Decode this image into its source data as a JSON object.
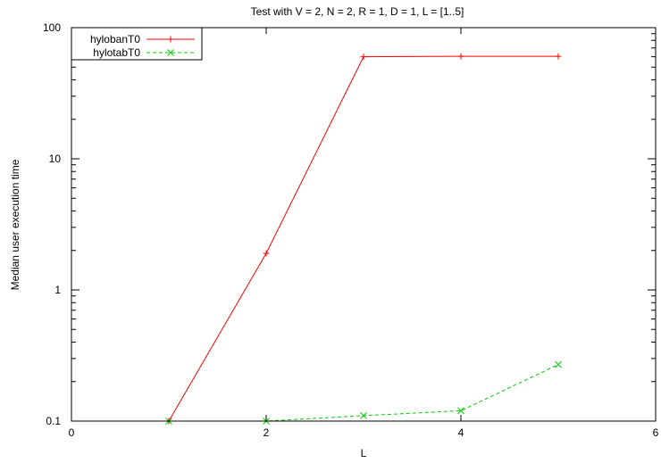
{
  "chart_data": {
    "type": "line",
    "title": "Test with V = 2, N = 2, R = 1, D = 1, L = [1..5]",
    "xlabel": "L",
    "ylabel": "Median user execution time",
    "xlim": [
      0,
      6
    ],
    "ylim": [
      0.1,
      100
    ],
    "yscale": "log",
    "xticks": [
      0,
      2,
      4,
      6
    ],
    "yticks": [
      0.1,
      1,
      10,
      100
    ],
    "xtick_labels": [
      "0",
      "2",
      "4",
      "6"
    ],
    "ytick_labels": [
      "0.1",
      "1",
      "10",
      "100"
    ],
    "grid": false,
    "legend_position": "top-left",
    "series": [
      {
        "name": "hylobanT0",
        "color": "#ff0000",
        "dash": "solid",
        "marker": "plus",
        "x": [
          1,
          2,
          3,
          4,
          5
        ],
        "y": [
          0.1,
          1.9,
          60,
          60.5,
          60.5
        ]
      },
      {
        "name": "hylotabT0",
        "color": "#00cc00",
        "dash": "dashed",
        "marker": "cross",
        "x": [
          1,
          2,
          3,
          4,
          5
        ],
        "y": [
          0.1,
          0.1,
          0.11,
          0.12,
          0.27
        ]
      }
    ]
  }
}
